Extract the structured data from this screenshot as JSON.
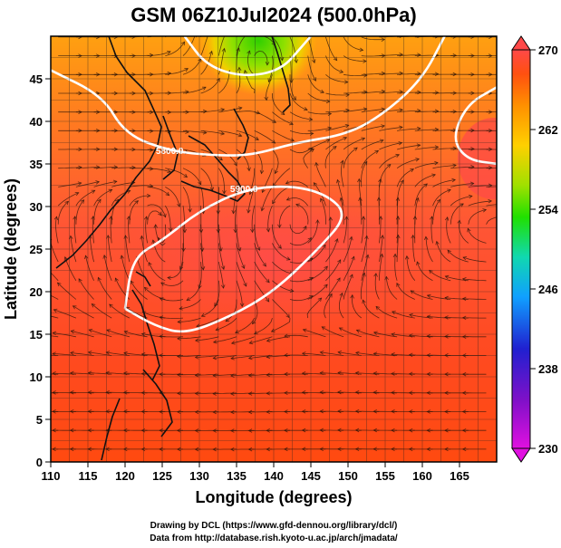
{
  "chart_data": {
    "type": "heatmap",
    "title": "GSM 06Z10Jul2024 (500.0hPa)",
    "xlabel": "Longitude (degrees)",
    "ylabel": "Latitude  (degrees)",
    "xlim": [
      110,
      170
    ],
    "ylim": [
      0,
      50
    ],
    "x_ticks": [
      110,
      115,
      120,
      125,
      130,
      135,
      140,
      145,
      150,
      155,
      160,
      165
    ],
    "y_ticks": [
      0,
      5,
      10,
      15,
      20,
      25,
      30,
      35,
      40,
      45
    ],
    "grid": true,
    "colorbar": {
      "ticks": [
        230,
        238,
        246,
        254,
        262,
        270
      ],
      "min": 230,
      "max": 270,
      "colors": [
        "#e010e0",
        "#7010c0",
        "#2020d0",
        "#10a0ff",
        "#10d8b0",
        "#20e000",
        "#a0e000",
        "#ffd000",
        "#ff9000",
        "#ff5010",
        "#ff4040"
      ]
    },
    "contours": [
      {
        "label": "5900.0",
        "path": [
          [
            120,
            18
          ],
          [
            121,
            24
          ],
          [
            125,
            26
          ],
          [
            130,
            29.5
          ],
          [
            136,
            32
          ],
          [
            142,
            32.5
          ],
          [
            147,
            31.5
          ],
          [
            150,
            29
          ],
          [
            146,
            25
          ],
          [
            140,
            20
          ],
          [
            134,
            17
          ],
          [
            128,
            15
          ],
          [
            124,
            16
          ],
          [
            120,
            18
          ]
        ]
      },
      {
        "label": "5800.0",
        "path": [
          [
            110,
            46
          ],
          [
            117,
            43
          ],
          [
            120,
            38.5
          ],
          [
            126,
            36.5
          ],
          [
            132,
            36
          ],
          [
            137,
            36
          ],
          [
            143,
            37.5
          ],
          [
            150,
            38.5
          ],
          [
            155,
            41
          ],
          [
            160,
            45
          ],
          [
            163,
            50
          ]
        ]
      },
      {
        "label": "",
        "path": [
          [
            170,
            44
          ],
          [
            166,
            42
          ],
          [
            164,
            38
          ],
          [
            166,
            35.5
          ],
          [
            170,
            35
          ]
        ]
      },
      {
        "label": "",
        "path": [
          [
            128,
            50
          ],
          [
            131,
            46.5
          ],
          [
            136,
            45.2
          ],
          [
            141,
            46
          ],
          [
            144,
            49
          ],
          [
            145,
            50
          ]
        ]
      }
    ],
    "regions": [
      {
        "name": "low-center",
        "lon": 138.5,
        "lat": 48,
        "value": 256
      },
      {
        "name": "high-center",
        "lon": 143,
        "lat": 28,
        "value": 269
      }
    ]
  },
  "credits": {
    "line1": "Drawing by DCL (https://www.gfd-dennou.org/library/dcl/)",
    "line2": "Data from http://database.rish.kyoto-u.ac.jp/arch/jmadata/"
  }
}
